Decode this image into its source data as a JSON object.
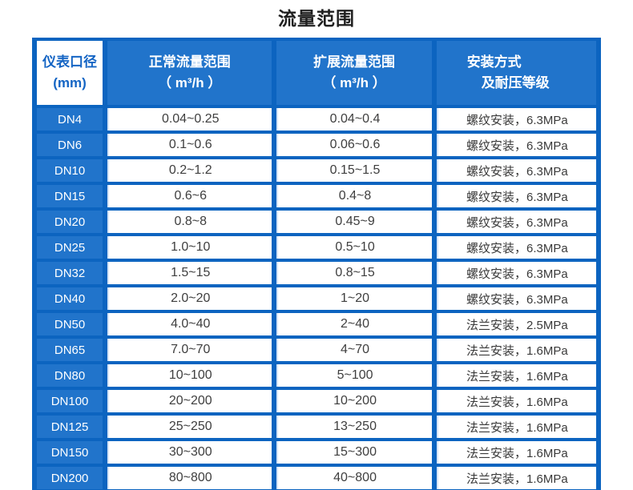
{
  "title": "流量范围",
  "colors": {
    "table_border_blue": "#0c64c0",
    "cell_blue": "#2174cb",
    "header_text": "#ffffff",
    "diameter_header_text": "#1565c4",
    "data_text": "#3e3e3e",
    "title_text": "#1f1f1f",
    "cell_bg": "#ffffff"
  },
  "table": {
    "headers": {
      "diameter": {
        "line1": "仪表口径",
        "line2": "(mm)"
      },
      "normal": {
        "line1": "正常流量范围",
        "line2": "（ m³/h ）"
      },
      "extended": {
        "line1": "扩展流量范围",
        "line2": "（ m³/h ）"
      },
      "install": {
        "line1": "安装方式",
        "line2": "及耐压等级"
      }
    },
    "rows": [
      {
        "dn": "DN4",
        "normal": "0.04~0.25",
        "extended": "0.04~0.4",
        "install": "螺纹安装，6.3MPa"
      },
      {
        "dn": "DN6",
        "normal": "0.1~0.6",
        "extended": "0.06~0.6",
        "install": "螺纹安装，6.3MPa"
      },
      {
        "dn": "DN10",
        "normal": "0.2~1.2",
        "extended": "0.15~1.5",
        "install": "螺纹安装，6.3MPa"
      },
      {
        "dn": "DN15",
        "normal": "0.6~6",
        "extended": "0.4~8",
        "install": "螺纹安装，6.3MPa"
      },
      {
        "dn": "DN20",
        "normal": "0.8~8",
        "extended": "0.45~9",
        "install": "螺纹安装，6.3MPa"
      },
      {
        "dn": "DN25",
        "normal": "1.0~10",
        "extended": "0.5~10",
        "install": "螺纹安装，6.3MPa"
      },
      {
        "dn": "DN32",
        "normal": "1.5~15",
        "extended": "0.8~15",
        "install": "螺纹安装，6.3MPa"
      },
      {
        "dn": "DN40",
        "normal": "2.0~20",
        "extended": "1~20",
        "install": "螺纹安装，6.3MPa"
      },
      {
        "dn": "DN50",
        "normal": "4.0~40",
        "extended": "2~40",
        "install": "法兰安装，2.5MPa"
      },
      {
        "dn": "DN65",
        "normal": "7.0~70",
        "extended": "4~70",
        "install": "法兰安装，1.6MPa"
      },
      {
        "dn": "DN80",
        "normal": "10~100",
        "extended": "5~100",
        "install": "法兰安装，1.6MPa"
      },
      {
        "dn": "DN100",
        "normal": "20~200",
        "extended": "10~200",
        "install": "法兰安装，1.6MPa"
      },
      {
        "dn": "DN125",
        "normal": "25~250",
        "extended": "13~250",
        "install": "法兰安装，1.6MPa"
      },
      {
        "dn": "DN150",
        "normal": "30~300",
        "extended": "15~300",
        "install": "法兰安装，1.6MPa"
      },
      {
        "dn": "DN200",
        "normal": "80~800",
        "extended": "40~800",
        "install": "法兰安装，1.6MPa"
      }
    ]
  }
}
